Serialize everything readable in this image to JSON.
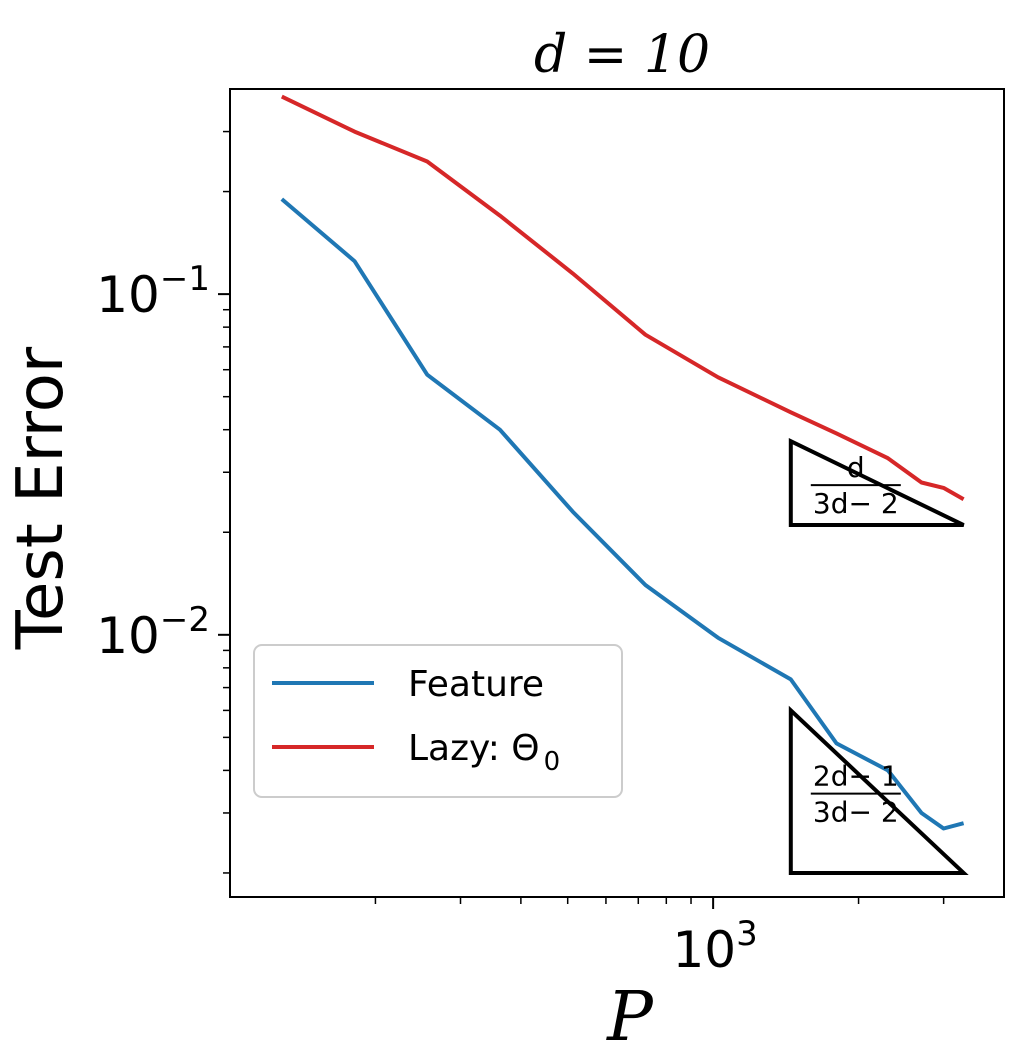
{
  "chart_data": {
    "type": "line",
    "title": "d = 10",
    "xlabel": "P",
    "ylabel": "Test Error",
    "xscale": "log",
    "yscale": "log",
    "xlim": [
      100,
      4000
    ],
    "ylim": [
      0.0017,
      0.4
    ],
    "x_ticks": [
      {
        "value": 1000,
        "base": "10",
        "exp": "3"
      }
    ],
    "y_ticks": [
      {
        "value": 0.1,
        "base": "10",
        "exp": "−1"
      },
      {
        "value": 0.01,
        "base": "10",
        "exp": "−2"
      }
    ],
    "legend_position": "lower-left",
    "series": [
      {
        "name": "Feature",
        "color": "#1f77b4",
        "x": [
          128,
          181,
          256,
          362,
          512,
          724,
          1024,
          1448,
          1800,
          2300,
          2700,
          3000,
          3300
        ],
        "y": [
          0.19,
          0.125,
          0.058,
          0.04,
          0.023,
          0.014,
          0.0098,
          0.0074,
          0.0048,
          0.004,
          0.003,
          0.0027,
          0.0028
        ]
      },
      {
        "name": "Lazy: Θ",
        "name_sub": "0",
        "color": "#d62728",
        "x": [
          128,
          181,
          256,
          362,
          512,
          724,
          1024,
          1448,
          1800,
          2300,
          2700,
          3000,
          3300
        ],
        "y": [
          0.38,
          0.3,
          0.245,
          0.17,
          0.115,
          0.076,
          0.057,
          0.045,
          0.039,
          0.033,
          0.028,
          0.027,
          0.025
        ]
      }
    ],
    "annotations": [
      {
        "type": "slope-triangle",
        "numerator": "d",
        "denominator": "3d− 2",
        "x_from": 1448,
        "x_to": 3300,
        "y_top": 0.037,
        "y_bottom": 0.021
      },
      {
        "type": "slope-triangle",
        "numerator": "2d− 1",
        "denominator": "3d− 2",
        "x_from": 1448,
        "x_to": 3300,
        "y_top": 0.006,
        "y_bottom": 0.002
      }
    ]
  }
}
